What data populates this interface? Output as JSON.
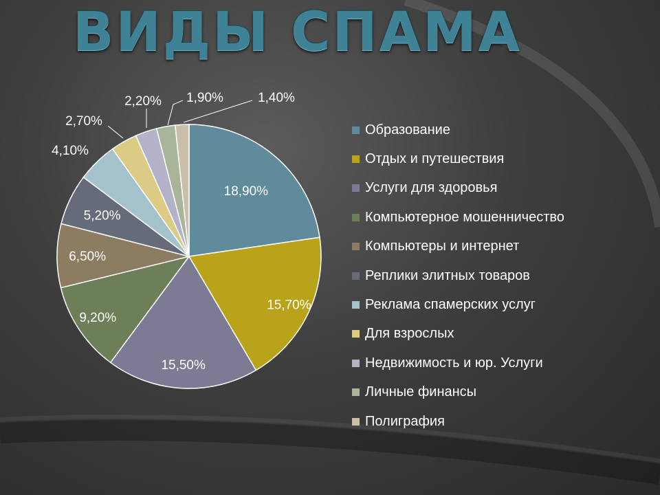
{
  "title": "ВИДЫ СПАМА",
  "chart_data": {
    "type": "pie",
    "labels": [
      "Образование",
      "Отдых и путешествия",
      "Услуги для здоровья",
      "Компьютерное мошенничество",
      "Компьютеры и интернет",
      "Реплики элитных товаров",
      "Реклама спамерских услуг",
      "Для взрослых",
      "Недвижимость и юр. Услуги",
      "Личные финансы",
      "Полиграфия"
    ],
    "values": [
      18.9,
      15.7,
      15.5,
      9.2,
      6.5,
      5.2,
      4.1,
      2.7,
      2.2,
      1.9,
      1.4
    ],
    "data_labels": [
      "18,90%",
      "15,70%",
      "15,50%",
      "9,20%",
      "6,50%",
      "5,20%",
      "4,10%",
      "2,70%",
      "2,20%",
      "1,90%",
      "1,40%"
    ],
    "colors": [
      "#5f8b9b",
      "#b9a31a",
      "#7d7b94",
      "#6d7f59",
      "#8c7c61",
      "#656b78",
      "#a3c2cc",
      "#dccb85",
      "#b4b2c8",
      "#a9b59b",
      "#c9bfa9"
    ],
    "legend_position": "right"
  }
}
